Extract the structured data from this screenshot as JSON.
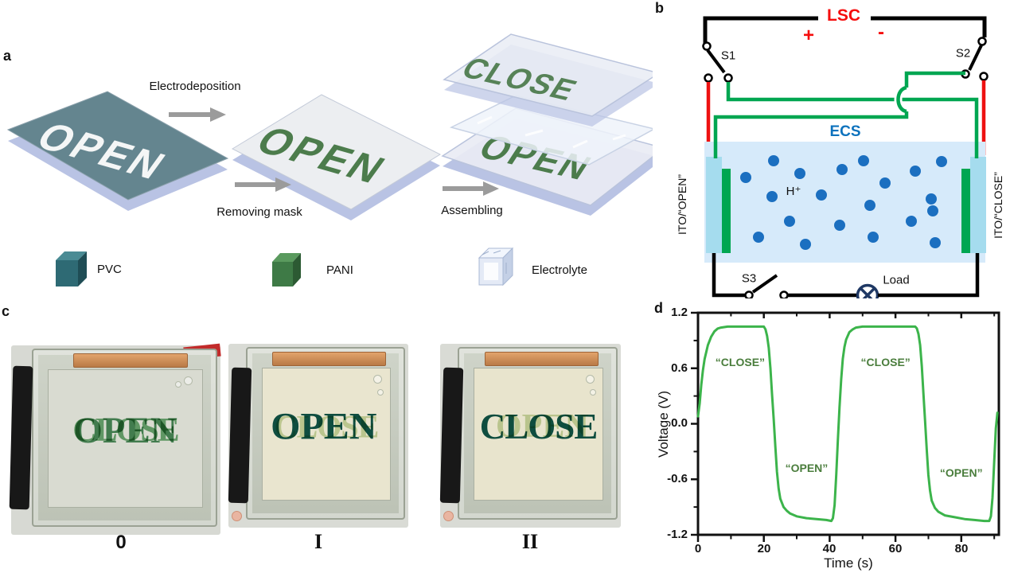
{
  "panels": {
    "a_label": "a",
    "b_label": "b",
    "c_label": "c",
    "d_label": "d"
  },
  "panel_a": {
    "step1_label": "Electrodeposition",
    "step2_label": "Removing mask",
    "step3_label": "Assembling",
    "plate1_text": "OPEN",
    "plate2_text": "OPEN",
    "stack_top_text": "CLOSE",
    "stack_bottom_text": "OPEN",
    "legend": [
      {
        "name": "PVC",
        "color": "#2e6a74"
      },
      {
        "name": "PANI",
        "color": "#3e7a46"
      },
      {
        "name": "Electrolyte",
        "color": "#e4eaf6"
      }
    ]
  },
  "panel_b": {
    "battery_label": "LSC",
    "plus_sign": "+",
    "minus_sign": "-",
    "switch1_label": "S1",
    "switch2_label": "S2",
    "switch3_label": "S3",
    "ecs_label": "ECS",
    "ion_label": "H⁺",
    "load_label": "Load",
    "left_electrode_label": "ITO/“OPEN”",
    "right_electrode_label": "ITO/“CLOSE”",
    "colors": {
      "lsc_red": "#f50d0d",
      "wire_red": "#ee1111",
      "wire_green": "#00a651",
      "electrolyte_fill": "#d6eafa",
      "ion_blue": "#1b6fc0",
      "ito_cyan": "#a5dcee",
      "ecs_blue": "#0d72bd",
      "load_navy": "#1f3864"
    }
  },
  "panel_c": {
    "photos": [
      {
        "state_label": "0",
        "front_word": "OPEN",
        "back_word": "CLOSE"
      },
      {
        "state_label": "I",
        "front_word": "OPEN",
        "back_word": "CLOSE"
      },
      {
        "state_label": "II",
        "front_word": "CLOSE",
        "back_word": "OPEN"
      }
    ]
  },
  "chart_data": {
    "type": "line",
    "xlabel": "Time (s)",
    "ylabel": "Voltage (V)",
    "xlim": [
      0,
      91
    ],
    "ylim": [
      -1.2,
      1.2
    ],
    "x_ticks": [
      0,
      20,
      40,
      60,
      80
    ],
    "x_tick_labels": [
      "0",
      "20",
      "40",
      "60",
      "80"
    ],
    "x_minor_ticks": [
      10,
      30,
      50,
      70,
      90
    ],
    "y_ticks": [
      1.2,
      0.6,
      0.0,
      -0.6,
      -1.2
    ],
    "y_tick_labels": [
      "1.2",
      "0.6",
      "0.0",
      "-0.6",
      "-1.2"
    ],
    "y_minor_ticks": [
      0.9,
      0.3,
      -0.3,
      -0.9
    ],
    "grid": false,
    "legend_position": "none",
    "line_color": "#3cb44b",
    "annotations": [
      {
        "text": "“CLOSE”",
        "t": 12.8,
        "v": 0.67
      },
      {
        "text": "“OPEN”",
        "t": 33.0,
        "v": -0.48
      },
      {
        "text": "“CLOSE”",
        "t": 57.0,
        "v": 0.67
      },
      {
        "text": "“OPEN”",
        "t": 80.0,
        "v": -0.53
      }
    ],
    "series": [
      {
        "name": "Voltage",
        "points": [
          [
            0,
            0.08
          ],
          [
            0.5,
            0.22
          ],
          [
            1,
            0.42
          ],
          [
            1.5,
            0.58
          ],
          [
            2,
            0.7
          ],
          [
            3,
            0.85
          ],
          [
            4,
            0.94
          ],
          [
            5,
            1.0
          ],
          [
            6,
            1.03
          ],
          [
            7,
            1.04
          ],
          [
            9,
            1.05
          ],
          [
            12,
            1.05
          ],
          [
            16,
            1.05
          ],
          [
            19,
            1.05
          ],
          [
            20,
            1.05
          ],
          [
            20.5,
            1.02
          ],
          [
            21,
            0.95
          ],
          [
            21.5,
            0.82
          ],
          [
            22,
            0.6
          ],
          [
            22.5,
            0.32
          ],
          [
            23,
            0.05
          ],
          [
            23.5,
            -0.25
          ],
          [
            24,
            -0.52
          ],
          [
            24.5,
            -0.7
          ],
          [
            25,
            -0.81
          ],
          [
            26,
            -0.9
          ],
          [
            27,
            -0.94
          ],
          [
            28,
            -0.97
          ],
          [
            30,
            -1.0
          ],
          [
            33,
            -1.02
          ],
          [
            36,
            -1.03
          ],
          [
            39,
            -1.04
          ],
          [
            40.5,
            -1.05
          ],
          [
            41,
            -1.02
          ],
          [
            41.5,
            -0.88
          ],
          [
            42,
            -0.55
          ],
          [
            42.5,
            -0.18
          ],
          [
            43,
            0.18
          ],
          [
            43.5,
            0.48
          ],
          [
            44,
            0.7
          ],
          [
            44.5,
            0.83
          ],
          [
            45,
            0.91
          ],
          [
            46,
            0.99
          ],
          [
            47,
            1.02
          ],
          [
            48,
            1.04
          ],
          [
            50,
            1.05
          ],
          [
            55,
            1.05
          ],
          [
            60,
            1.05
          ],
          [
            64,
            1.05
          ],
          [
            66,
            1.05
          ],
          [
            66.5,
            1.03
          ],
          [
            67,
            0.97
          ],
          [
            67.5,
            0.85
          ],
          [
            68,
            0.62
          ],
          [
            68.5,
            0.33
          ],
          [
            69,
            0.03
          ],
          [
            69.5,
            -0.28
          ],
          [
            70,
            -0.55
          ],
          [
            70.5,
            -0.72
          ],
          [
            71,
            -0.83
          ],
          [
            72,
            -0.91
          ],
          [
            73,
            -0.95
          ],
          [
            75,
            -0.99
          ],
          [
            78,
            -1.01
          ],
          [
            81,
            -1.03
          ],
          [
            84,
            -1.04
          ],
          [
            87,
            -1.05
          ],
          [
            88.5,
            -1.05
          ],
          [
            89,
            -1.0
          ],
          [
            89.5,
            -0.8
          ],
          [
            90,
            -0.42
          ],
          [
            90.5,
            -0.05
          ],
          [
            91,
            0.12
          ]
        ]
      }
    ]
  }
}
